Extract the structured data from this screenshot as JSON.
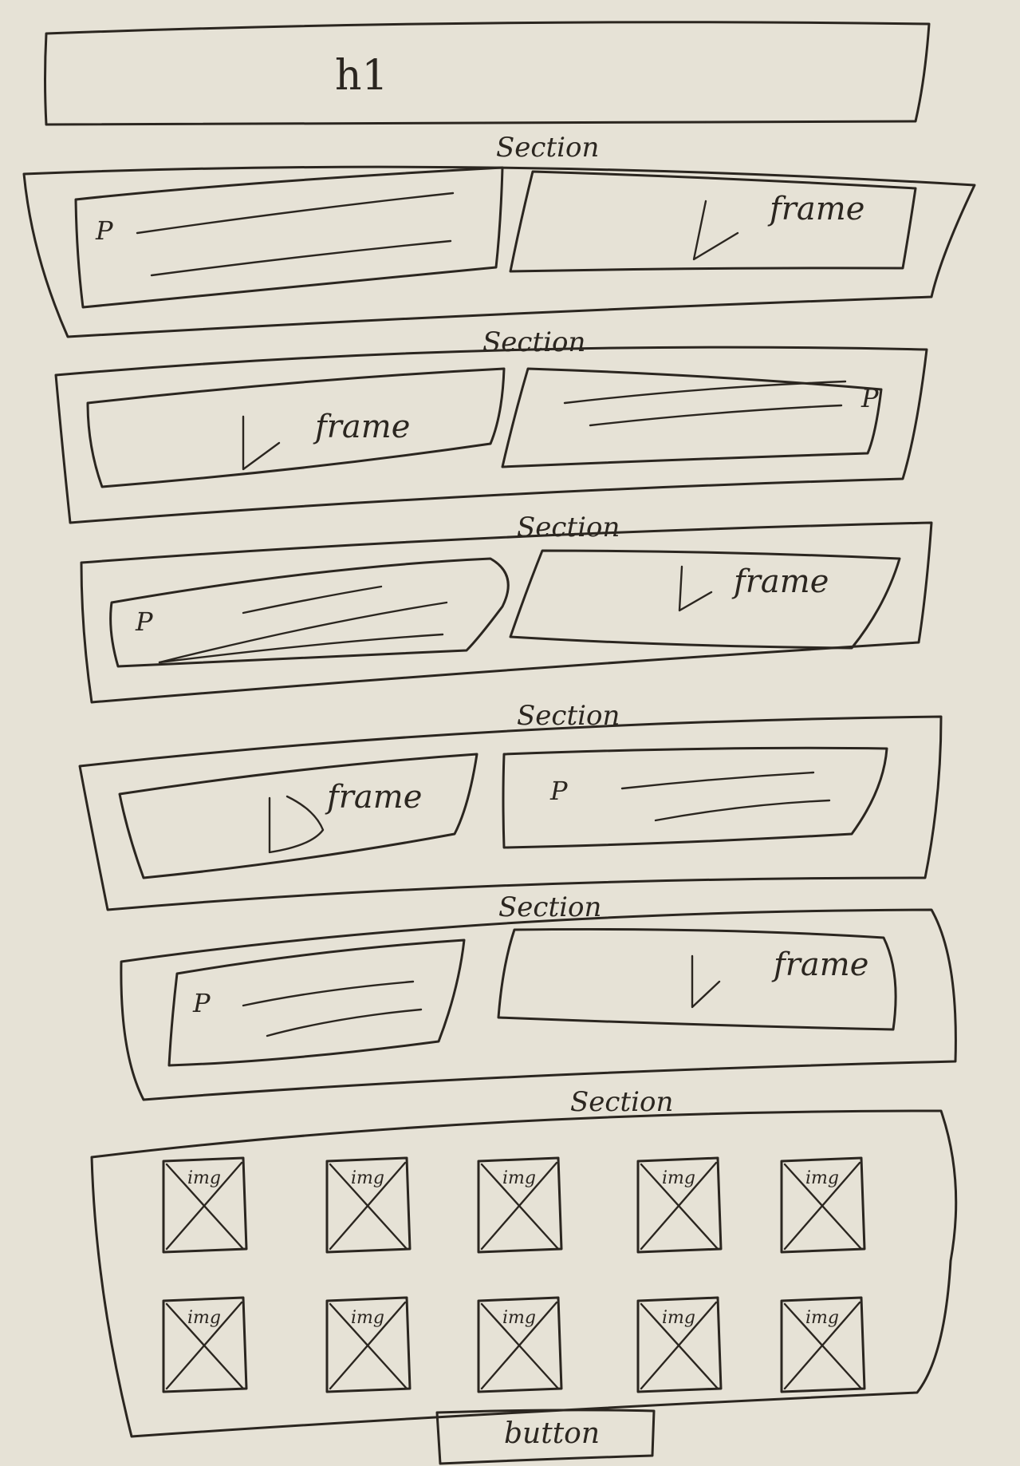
{
  "header": {
    "label": "h1"
  },
  "section_label": "Section",
  "frame_label": "frame",
  "paragraph_label": "P",
  "image_label": "img",
  "button_label": "button",
  "rows": [
    {
      "left": "p",
      "right": "frame"
    },
    {
      "left": "frame",
      "right": "p"
    },
    {
      "left": "p",
      "right": "frame"
    },
    {
      "left": "frame",
      "right": "p"
    },
    {
      "left": "p",
      "right": "frame"
    }
  ],
  "gallery": {
    "rows": 2,
    "per_row": 5
  },
  "colors": {
    "paper": "#e6e2d6",
    "ink": "#2b2620"
  }
}
